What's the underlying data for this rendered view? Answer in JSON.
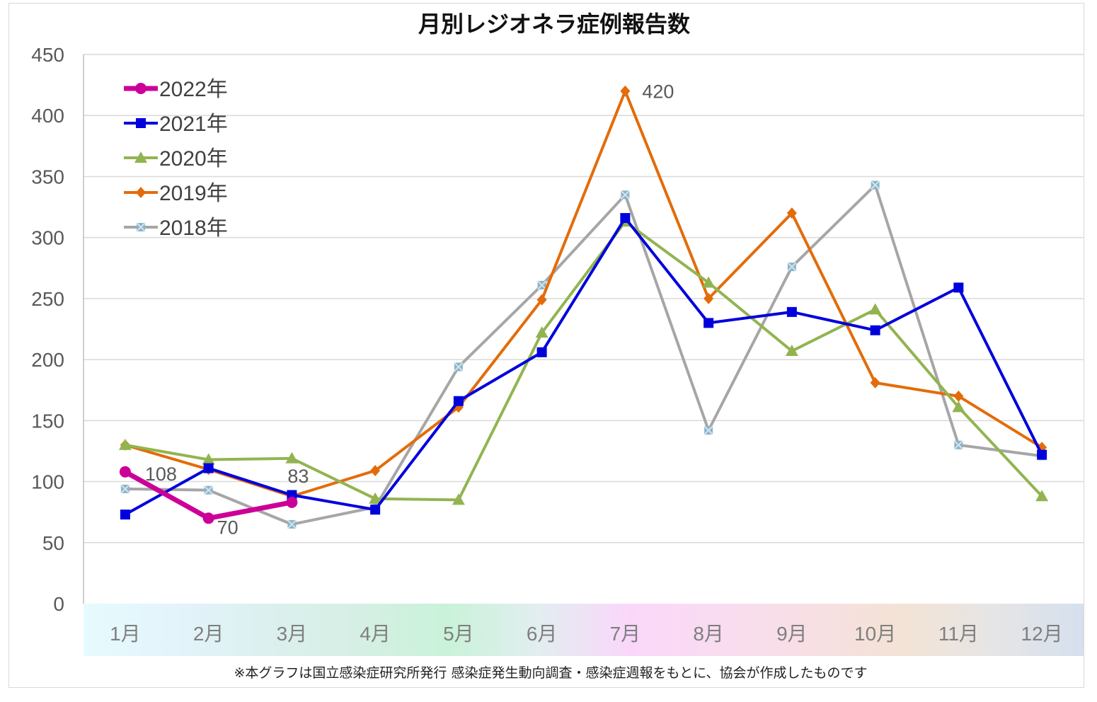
{
  "chart_data": {
    "type": "line",
    "title": "月別レジオネラ症例報告数",
    "categories": [
      "1月",
      "2月",
      "3月",
      "4月",
      "5月",
      "6月",
      "7月",
      "8月",
      "9月",
      "10月",
      "11月",
      "12月"
    ],
    "ylim": [
      0,
      450
    ],
    "yticks": [
      0,
      50,
      100,
      150,
      200,
      250,
      300,
      350,
      400,
      450
    ],
    "grid": true,
    "legend_position": "top-left",
    "series": [
      {
        "name": "2022年",
        "color": "#cc0099",
        "marker": "circle",
        "values": [
          108,
          70,
          83,
          null,
          null,
          null,
          null,
          null,
          null,
          null,
          null,
          null
        ]
      },
      {
        "name": "2021年",
        "color": "#0000dd",
        "marker": "square",
        "values": [
          73,
          111,
          89,
          77,
          166,
          206,
          316,
          230,
          239,
          224,
          259,
          122
        ]
      },
      {
        "name": "2020年",
        "color": "#92b450",
        "marker": "triangle",
        "values": [
          130,
          118,
          119,
          86,
          85,
          222,
          313,
          263,
          207,
          241,
          161,
          88
        ]
      },
      {
        "name": "2019年",
        "color": "#e36c0a",
        "marker": "diamond",
        "values": [
          130,
          110,
          88,
          109,
          161,
          249,
          420,
          250,
          320,
          181,
          170,
          128
        ]
      },
      {
        "name": "2018年",
        "color": "#a6a6a6",
        "marker": "x-square",
        "values": [
          94,
          93,
          65,
          79,
          194,
          261,
          335,
          142,
          276,
          343,
          130,
          121
        ]
      }
    ],
    "data_labels": [
      {
        "series": "2022年",
        "category": "1月",
        "text": "108"
      },
      {
        "series": "2022年",
        "category": "2月",
        "text": "70"
      },
      {
        "series": "2022年",
        "category": "3月",
        "text": "83"
      },
      {
        "series": "2019年",
        "category": "7月",
        "text": "420"
      }
    ],
    "x_band_colors": [
      "#e6fbfd",
      "#e3f4fb",
      "#dcf0ef",
      "#d6efe4",
      "#c9f2d9",
      "#e2eef0",
      "#fad7fa",
      "#f9dcf0",
      "#f8dfe4",
      "#f3e3d5",
      "#e6e5e5",
      "#d5e0ee"
    ],
    "footnote": "※本グラフは国立感染症研究所発行 感染症発生動向調査・感染症週報をもとに、協会が作成したものです"
  }
}
